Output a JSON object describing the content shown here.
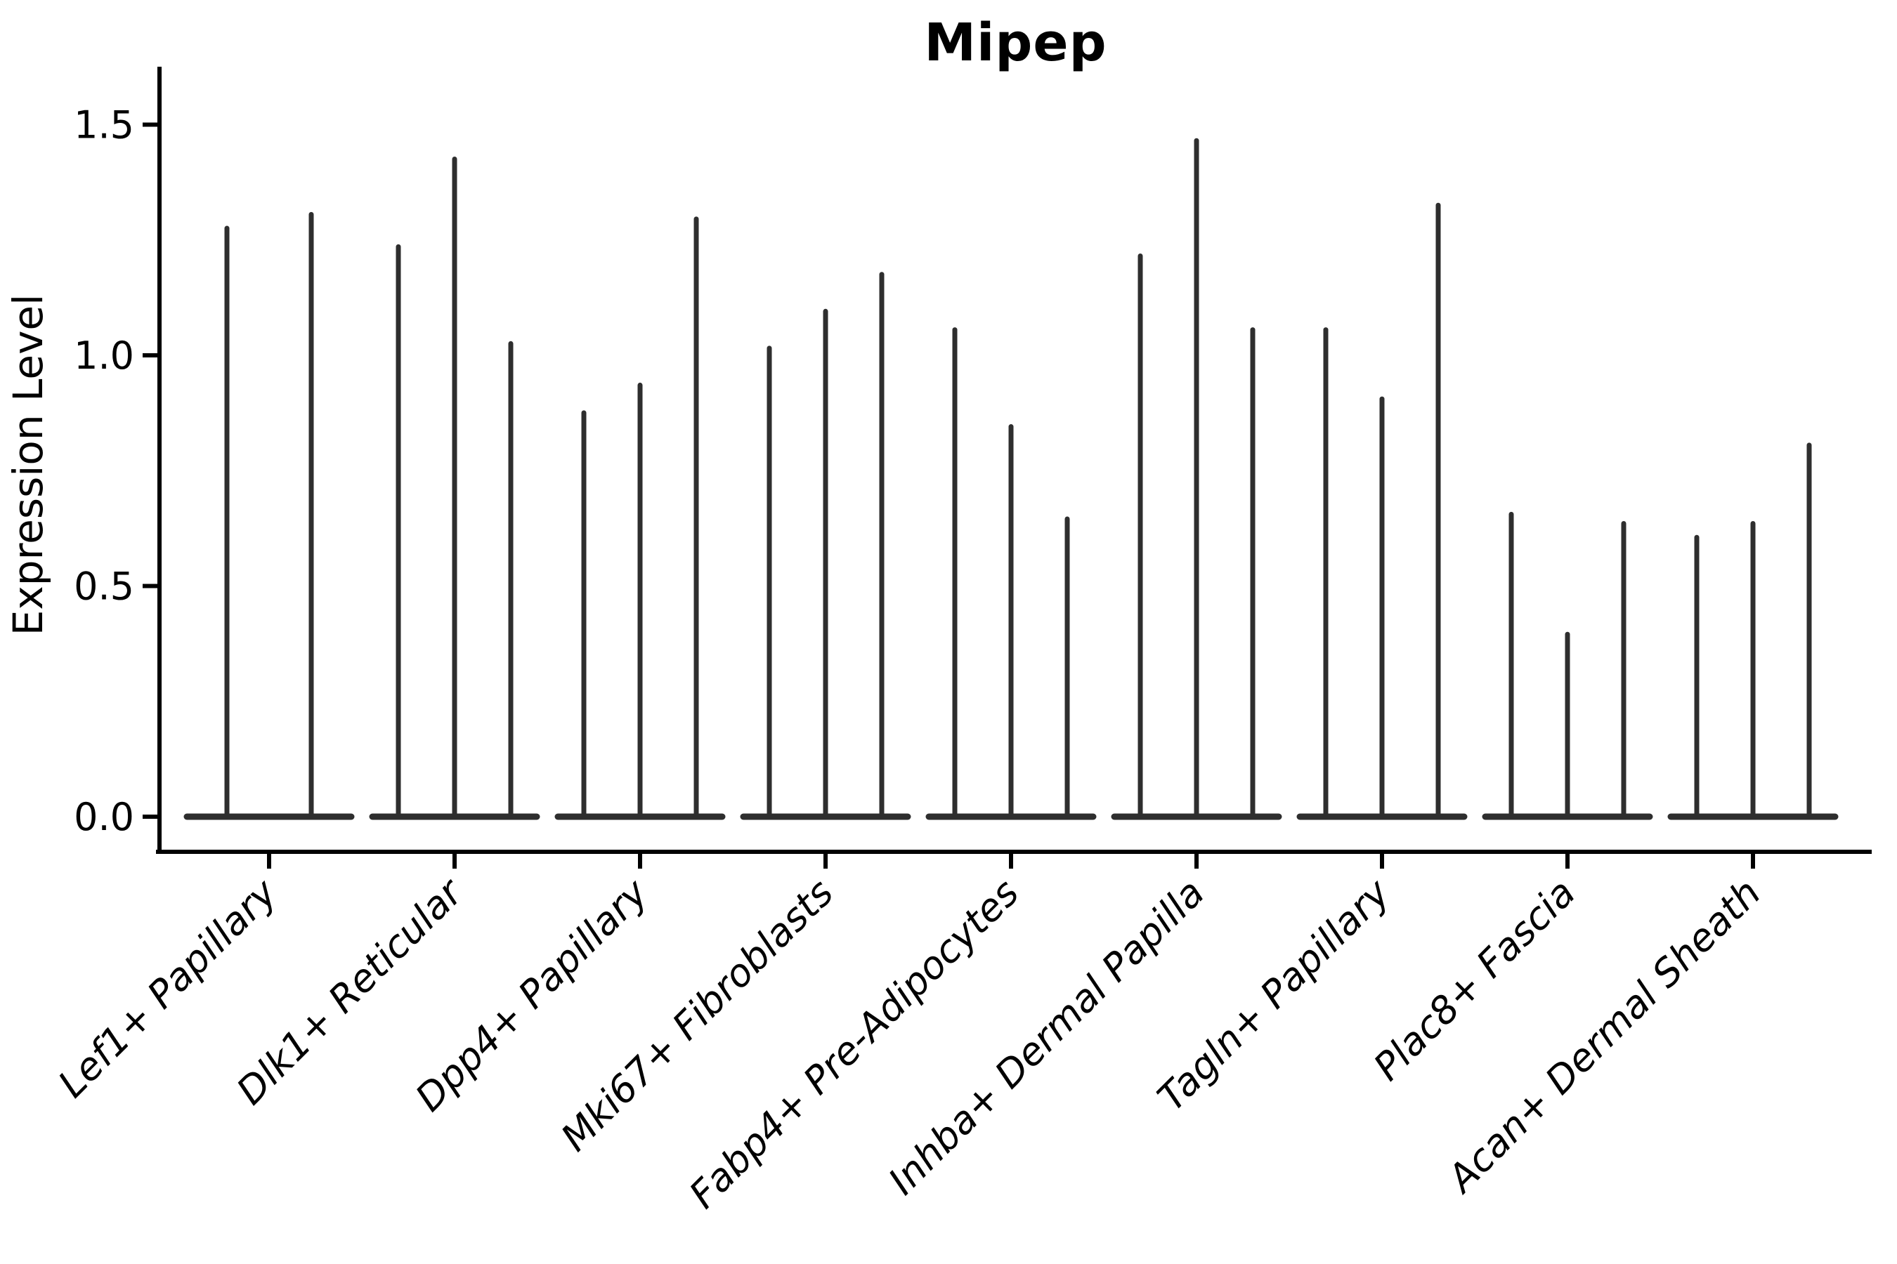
{
  "chart_data": {
    "type": "violin",
    "title": "Mipep",
    "ylabel": "Expression Level",
    "xlabel": "",
    "yticks": [
      "0.0",
      "0.5",
      "1.0",
      "1.5"
    ],
    "ylim": [
      0,
      1.625
    ],
    "grid": false,
    "legend": "none",
    "description": "Violin plot of gene expression (Seurat-style VlnPlot); each cell-type group contains multiple very thin violins that are wide only at expression 0 and rise as narrow spikes to their maximum expression value.",
    "categories": [
      "Lef1+ Papillary",
      "Dlk1+ Reticular",
      "Dpp4+ Papillary",
      "Mki67+ Fibroblasts",
      "Fabp4+ Pre-Adipocytes",
      "Inhba+ Dermal Papilla",
      "Tagln+ Papillary",
      "Plac8+ Fascia",
      "Acan+ Dermal Sheath"
    ],
    "groups": [
      {
        "category": "Lef1+ Papillary",
        "violin_max_values": [
          1.28,
          1.31
        ]
      },
      {
        "category": "Dlk1+ Reticular",
        "violin_max_values": [
          1.24,
          1.43,
          1.03
        ]
      },
      {
        "category": "Dpp4+ Papillary",
        "violin_max_values": [
          0.88,
          0.94,
          1.3
        ]
      },
      {
        "category": "Mki67+ Fibroblasts",
        "violin_max_values": [
          1.02,
          1.1,
          1.18
        ]
      },
      {
        "category": "Fabp4+ Pre-Adipocytes",
        "violin_max_values": [
          1.06,
          0.85,
          0.65
        ]
      },
      {
        "category": "Inhba+ Dermal Papilla",
        "violin_max_values": [
          1.22,
          1.47,
          1.06
        ]
      },
      {
        "category": "Tagln+ Papillary",
        "violin_max_values": [
          1.06,
          0.91,
          1.33
        ]
      },
      {
        "category": "Plac8+ Fascia",
        "violin_max_values": [
          0.66,
          0.4,
          0.64
        ]
      },
      {
        "category": "Acan+ Dermal Sheath",
        "violin_max_values": [
          0.61,
          0.64,
          0.81
        ]
      }
    ],
    "colors": {
      "violin": "#2e2e2e",
      "axis": "#000000",
      "background": "#ffffff"
    }
  }
}
